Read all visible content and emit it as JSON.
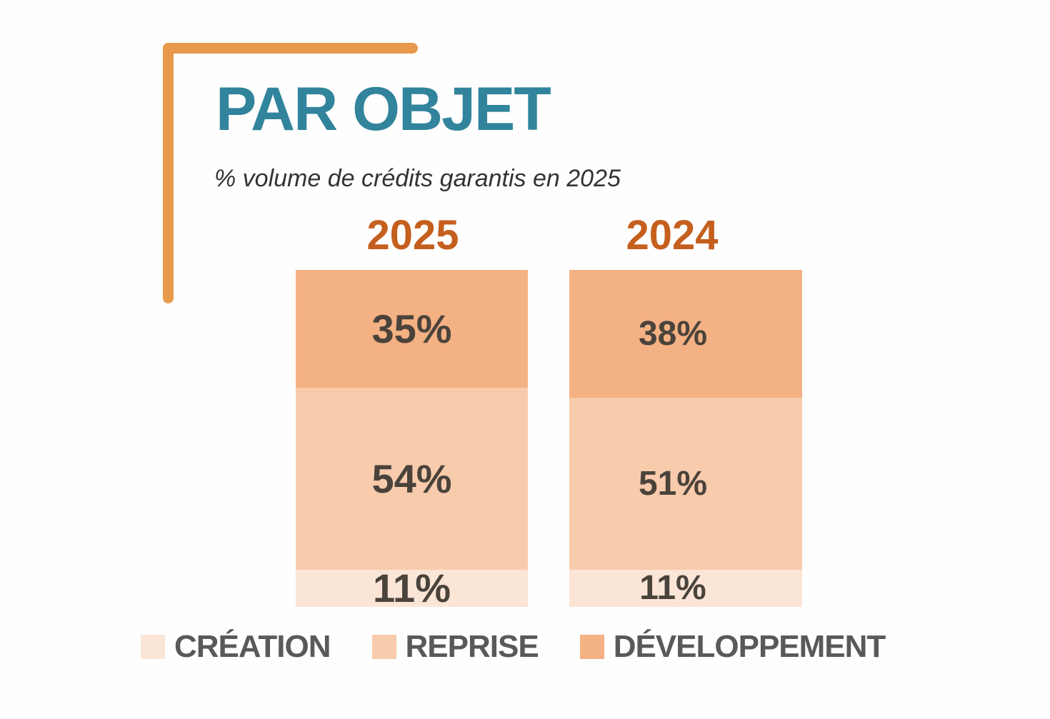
{
  "title": "PAR OBJET",
  "subtitle": "% volume de crédits garantis en 2025",
  "colors": {
    "bracket": "#E9994C",
    "title": "#31849B",
    "subtitle": "#333333",
    "year_label": "#C55F1E",
    "value_label": "#4A433B",
    "legend_text": "#595959",
    "segment_creation": "#FBE5D6",
    "segment_reprise": "#F8CBAD",
    "segment_developpement": "#F4B183"
  },
  "chart_data": {
    "type": "bar",
    "variant": "stacked-100-percent",
    "title": "PAR OBJET",
    "subtitle": "% volume de crédits garantis en 2025",
    "unit": "%",
    "categories": [
      "2025",
      "2024"
    ],
    "stack_top_to_bottom": [
      "DÉVELOPPEMENT",
      "REPRISE",
      "CRÉATION"
    ],
    "series": [
      {
        "name": "CRÉATION",
        "color": "#FBE5D6",
        "values": [
          11,
          11
        ]
      },
      {
        "name": "REPRISE",
        "color": "#F8CBAD",
        "values": [
          54,
          51
        ]
      },
      {
        "name": "DÉVELOPPEMENT",
        "color": "#F4B183",
        "values": [
          35,
          38
        ]
      }
    ],
    "value_labels": {
      "2025": [
        "35%",
        "54%",
        "11%"
      ],
      "2024": [
        "38%",
        "51%",
        "11%"
      ]
    },
    "axes": false,
    "grid": false,
    "legend_position": "bottom"
  },
  "legend": {
    "items": [
      {
        "label": "CRÉATION",
        "color": "#FBE5D6"
      },
      {
        "label": "REPRISE",
        "color": "#F8CBAD"
      },
      {
        "label": "DÉVELOPPEMENT",
        "color": "#F4B183"
      }
    ]
  }
}
